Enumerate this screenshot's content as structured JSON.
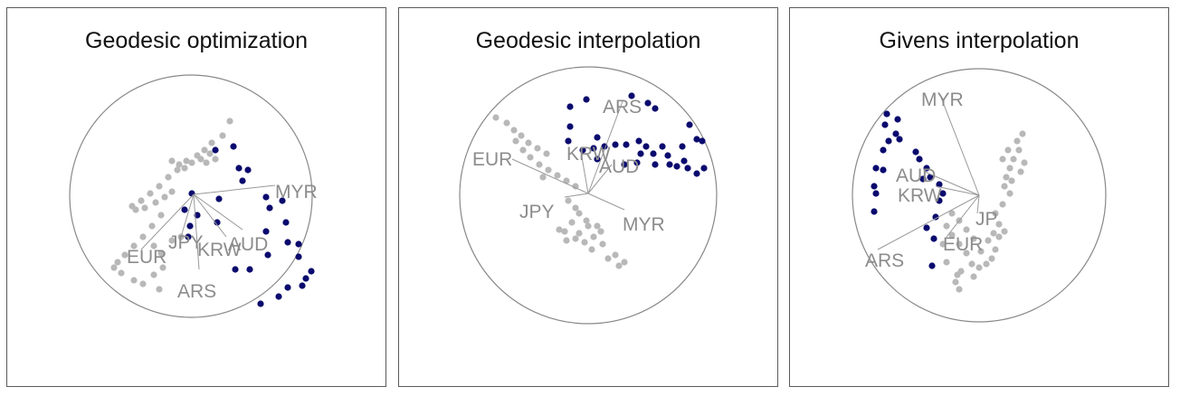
{
  "chart_data": [
    {
      "type": "scatter",
      "title": "Geodesic optimization",
      "circle_color": "#888888",
      "axis_color": "#999999",
      "groups": [
        {
          "color": "#b8b8b8",
          "points": [
            [
              254,
              134
            ],
            [
              246,
              150
            ],
            [
              234,
              158
            ],
            [
              226,
              166
            ],
            [
              218,
              172
            ],
            [
              206,
              178
            ],
            [
              198,
              182
            ],
            [
              190,
              178
            ],
            [
              212,
              180
            ],
            [
              222,
              176
            ],
            [
              232,
              170
            ],
            [
              238,
              176
            ],
            [
              228,
              180
            ],
            [
              204,
              186
            ],
            [
              196,
              188
            ],
            [
              186,
              196
            ],
            [
              176,
              206
            ],
            [
              166,
              214
            ],
            [
              156,
              222
            ],
            [
              146,
              228
            ],
            [
              150,
              232
            ],
            [
              160,
              230
            ],
            [
              172,
              224
            ],
            [
              182,
              218
            ],
            [
              190,
              212
            ],
            [
              178,
              238
            ],
            [
              168,
              250
            ],
            [
              158,
              262
            ],
            [
              148,
              272
            ],
            [
              138,
              282
            ],
            [
              130,
              290
            ],
            [
              126,
              296
            ],
            [
              134,
              302
            ],
            [
              148,
              310
            ],
            [
              158,
              314
            ],
            [
              170,
              304
            ],
            [
              180,
              296
            ],
            [
              170,
              272
            ],
            [
              178,
              280
            ],
            [
              190,
              266
            ],
            [
              200,
              262
            ],
            [
              176,
              320
            ]
          ]
        },
        {
          "color": "#0a0a6e",
          "points": [
            [
              238,
              166
            ],
            [
              258,
              162
            ],
            [
              264,
              186
            ],
            [
              274,
              188
            ],
            [
              268,
              200
            ],
            [
              294,
              218
            ],
            [
              312,
              222
            ],
            [
              298,
              230
            ],
            [
              316,
              246
            ],
            [
              294,
              256
            ],
            [
              318,
              268
            ],
            [
              330,
              270
            ],
            [
              330,
              284
            ],
            [
              296,
              282
            ],
            [
              212,
              214
            ],
            [
              204,
              232
            ],
            [
              218,
              238
            ],
            [
              242,
              220
            ],
            [
              240,
              246
            ],
            [
              210,
              250
            ],
            [
              208,
              262
            ],
            [
              260,
              298
            ],
            [
              276,
              298
            ],
            [
              344,
              300
            ],
            [
              338,
              308
            ],
            [
              334,
              316
            ],
            [
              318,
              318
            ],
            [
              308,
              328
            ],
            [
              288,
              336
            ]
          ]
        }
      ],
      "axes": [
        {
          "label": "MYR",
          "end": [
            304,
            205
          ],
          "lx": 304,
          "ly": 212
        },
        {
          "label": "JPY",
          "end": [
            200,
            262
          ],
          "lx": 186,
          "ly": 268
        },
        {
          "label": "EUR",
          "end": [
            156,
            276
          ],
          "lx": 140,
          "ly": 284
        },
        {
          "label": "KRW",
          "end": [
            250,
            262
          ],
          "lx": 218,
          "ly": 276
        },
        {
          "label": "AUD",
          "end": [
            268,
            254
          ],
          "lx": 252,
          "ly": 270
        },
        {
          "label": "ARS",
          "end": [
            220,
            298
          ],
          "lx": 196,
          "ly": 322
        }
      ],
      "axes_origin": [
        214,
        215
      ]
    },
    {
      "type": "scatter",
      "title": "Geodesic interpolation",
      "circle_color": "#888888",
      "axis_color": "#999999",
      "groups": [
        {
          "color": "#b8b8b8",
          "points": [
            [
              548,
              130
            ],
            [
              560,
              136
            ],
            [
              568,
              144
            ],
            [
              576,
              150
            ],
            [
              584,
              158
            ],
            [
              594,
              164
            ],
            [
              604,
              170
            ],
            [
              596,
              182
            ],
            [
              606,
              188
            ],
            [
              616,
              194
            ],
            [
              626,
              200
            ],
            [
              636,
              206
            ],
            [
              600,
              196
            ],
            [
              586,
              174
            ],
            [
              578,
              166
            ],
            [
              570,
              156
            ],
            [
              628,
              222
            ],
            [
              636,
              230
            ],
            [
              640,
              236
            ],
            [
              648,
              244
            ],
            [
              632,
              246
            ],
            [
              624,
              256
            ],
            [
              636,
              264
            ],
            [
              646,
              268
            ],
            [
              656,
              262
            ],
            [
              664,
              256
            ],
            [
              660,
              250
            ],
            [
              666,
              270
            ],
            [
              654,
              276
            ],
            [
              672,
              286
            ],
            [
              684,
              294
            ],
            [
              650,
              250
            ],
            [
              618,
              254
            ],
            [
              626,
              266
            ],
            [
              640,
              258
            ],
            [
              680,
              282
            ],
            [
              690,
              290
            ]
          ]
        },
        {
          "color": "#0a0a6e",
          "points": [
            [
              630,
              118
            ],
            [
              648,
              110
            ],
            [
              698,
              106
            ],
            [
              716,
              114
            ],
            [
              724,
              120
            ],
            [
              630,
              140
            ],
            [
              628,
              156
            ],
            [
              660,
              152
            ],
            [
              668,
              162
            ],
            [
              644,
              166
            ],
            [
              660,
              176
            ],
            [
              680,
              160
            ],
            [
              692,
              160
            ],
            [
              706,
              156
            ],
            [
              714,
              162
            ],
            [
              708,
              170
            ],
            [
              704,
              180
            ],
            [
              722,
              170
            ],
            [
              724,
              182
            ],
            [
              732,
              162
            ],
            [
              738,
              172
            ],
            [
              740,
              182
            ],
            [
              748,
              184
            ],
            [
              754,
              162
            ],
            [
              756,
              178
            ],
            [
              762,
              138
            ],
            [
              770,
              154
            ],
            [
              776,
              156
            ],
            [
              778,
              186
            ],
            [
              760,
              186
            ],
            [
              770,
              192
            ],
            [
              690,
              182
            ],
            [
              656,
              164
            ]
          ]
        }
      ],
      "axes": [
        {
          "label": "ARS",
          "end": [
            688,
            112
          ],
          "lx": 666,
          "ly": 118
        },
        {
          "label": "EUR",
          "end": [
            566,
            176
          ],
          "lx": 522,
          "ly": 176
        },
        {
          "label": "KRW",
          "end": [
            642,
            168
          ],
          "lx": 626,
          "ly": 170
        },
        {
          "label": "AUD",
          "end": [
            676,
            182
          ],
          "lx": 662,
          "ly": 184
        },
        {
          "label": "JPY",
          "end": [
            624,
            218
          ],
          "lx": 574,
          "ly": 234
        },
        {
          "label": "MYR",
          "end": [
            690,
            232
          ],
          "lx": 688,
          "ly": 248
        }
      ],
      "axes_origin": [
        650,
        214
      ]
    },
    {
      "type": "scatter",
      "title": "Givens interpolation",
      "circle_color": "#888888",
      "axis_color": "#999999",
      "groups": [
        {
          "color": "#b8b8b8",
          "points": [
            [
              1130,
              148
            ],
            [
              1124,
              156
            ],
            [
              1126,
              166
            ],
            [
              1120,
              176
            ],
            [
              1116,
              186
            ],
            [
              1112,
              196
            ],
            [
              1110,
              206
            ],
            [
              1118,
              200
            ],
            [
              1128,
              190
            ],
            [
              1132,
              180
            ],
            [
              1114,
              166
            ],
            [
              1108,
              176
            ],
            [
              1116,
              214
            ],
            [
              1108,
              226
            ],
            [
              1100,
              236
            ],
            [
              1104,
              248
            ],
            [
              1098,
              258
            ],
            [
              1092,
              266
            ],
            [
              1100,
              276
            ],
            [
              1096,
              286
            ],
            [
              1090,
              292
            ],
            [
              1084,
              278
            ],
            [
              1076,
              264
            ],
            [
              1068,
              254
            ],
            [
              1060,
              244
            ],
            [
              1052,
              236
            ],
            [
              1046,
              250
            ],
            [
              1052,
              260
            ],
            [
              1060,
              270
            ],
            [
              1068,
              280
            ],
            [
              1074,
              292
            ],
            [
              1062,
              300
            ],
            [
              1056,
              312
            ],
            [
              1060,
              320
            ],
            [
              1046,
              290
            ],
            [
              1042,
              270
            ],
            [
              1082,
              296
            ],
            [
              1076,
              306
            ],
            [
              1104,
              262
            ],
            [
              1110,
              256
            ],
            [
              1058,
              304
            ]
          ]
        },
        {
          "color": "#0a0a6e",
          "points": [
            [
              980,
              126
            ],
            [
              992,
              132
            ],
            [
              978,
              138
            ],
            [
              990,
              148
            ],
            [
              982,
              156
            ],
            [
              976,
              166
            ],
            [
              994,
              154
            ],
            [
              968,
              186
            ],
            [
              976,
              188
            ],
            [
              966,
              206
            ],
            [
              968,
              214
            ],
            [
              966,
              234
            ],
            [
              1012,
              168
            ],
            [
              1016,
              176
            ],
            [
              1024,
              186
            ],
            [
              1028,
              196
            ],
            [
              1020,
              198
            ],
            [
              1038,
              204
            ],
            [
              1042,
              214
            ],
            [
              1038,
              222
            ],
            [
              1034,
              240
            ],
            [
              1024,
              252
            ],
            [
              1032,
              264
            ],
            [
              1030,
              294
            ]
          ]
        }
      ],
      "axes": [
        {
          "label": "MYR",
          "end": [
            1040,
            108
          ],
          "lx": 1018,
          "ly": 110
        },
        {
          "label": "AUD",
          "end": [
            1022,
            190
          ],
          "lx": 990,
          "ly": 194
        },
        {
          "label": "KRW",
          "end": [
            1034,
            206
          ],
          "lx": 992,
          "ly": 216
        },
        {
          "label": "JP",
          "end": [
            1080,
            236
          ],
          "lx": 1078,
          "ly": 242
        },
        {
          "label": "EUR",
          "end": [
            1046,
            262
          ],
          "lx": 1042,
          "ly": 270
        },
        {
          "label": "ARS",
          "end": [
            970,
            276
          ],
          "lx": 956,
          "ly": 288
        }
      ],
      "axes_origin": [
        1082,
        216
      ]
    }
  ]
}
